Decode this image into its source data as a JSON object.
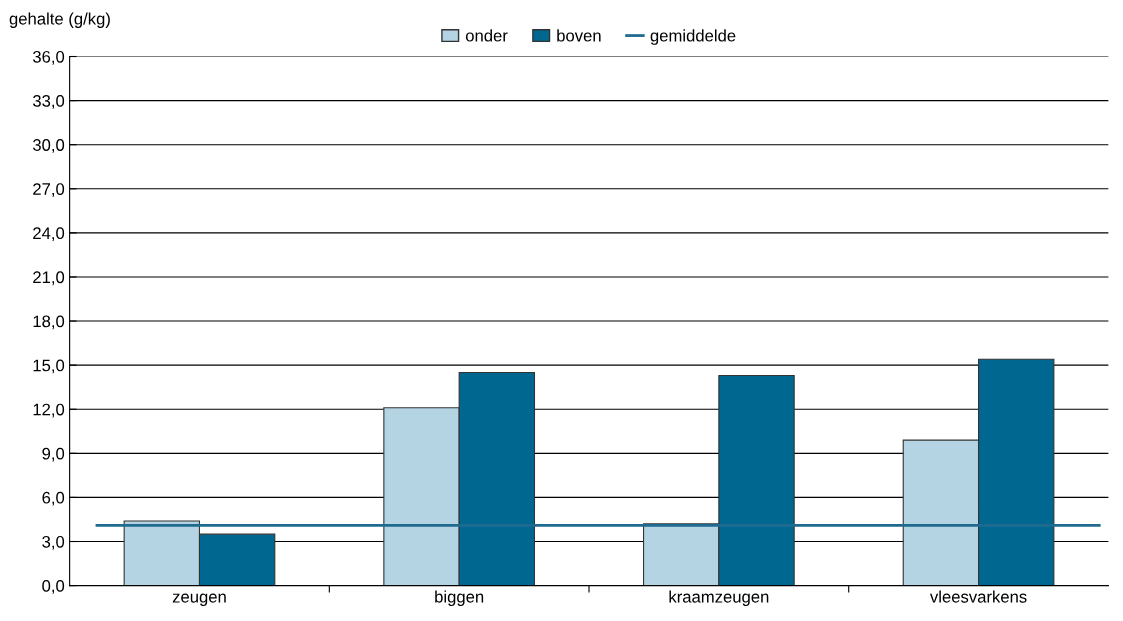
{
  "chart_data": {
    "type": "bar",
    "ylabel": "gehalte (g/kg)",
    "categories": [
      "zeugen",
      "biggen",
      "kraamzeugen",
      "vleesvarkens"
    ],
    "series": [
      {
        "name": "onder",
        "color": "#b4d4e4",
        "values": [
          4.4,
          12.1,
          4.2,
          9.9
        ]
      },
      {
        "name": "boven",
        "color": "#006890",
        "values": [
          3.5,
          14.5,
          14.3,
          15.4
        ]
      }
    ],
    "ref_lines": [
      {
        "axis": "y",
        "value": 4.1,
        "label": "gemiddelde",
        "color": "#1f6a8f",
        "line_style": "solid"
      }
    ],
    "ylim": [
      0,
      36
    ],
    "yticks": [
      {
        "value": 0,
        "label": "0,0"
      },
      {
        "value": 3,
        "label": "3,0"
      },
      {
        "value": 6,
        "label": "6,0"
      },
      {
        "value": 9,
        "label": "9,0"
      },
      {
        "value": 12,
        "label": "12,0"
      },
      {
        "value": 15,
        "label": "15,0"
      },
      {
        "value": 18,
        "label": "18,0"
      },
      {
        "value": 21,
        "label": "21,0"
      },
      {
        "value": 24,
        "label": "24,0"
      },
      {
        "value": 27,
        "label": "27,0"
      },
      {
        "value": 30,
        "label": "30,0"
      },
      {
        "value": 33,
        "label": "33,0"
      },
      {
        "value": 36,
        "label": "36,0"
      }
    ],
    "grid": "y",
    "legend": "top"
  }
}
